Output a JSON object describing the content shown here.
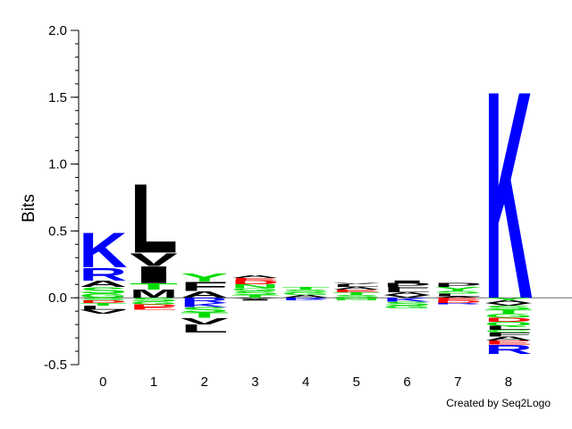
{
  "chart_data": {
    "type": "sequence-logo",
    "ylabel": "Bits",
    "ylim": [
      -0.5,
      2.0
    ],
    "yticks": [
      "-0.5",
      "0.0",
      "0.5",
      "1.0",
      "1.5",
      "2.0"
    ],
    "categories": [
      "0",
      "1",
      "2",
      "3",
      "4",
      "5",
      "6",
      "7",
      "8"
    ],
    "colors": {
      "K": "#0000ff",
      "R": "#0000ff",
      "H": "#0000ff",
      "S": "#00dd00",
      "G": "#00dd00",
      "T": "#00dd00",
      "Y": "#00dd00",
      "C": "#00dd00",
      "Q": "#00dd00",
      "N": "#00dd00",
      "D": "#ff0000",
      "E": "#ff0000",
      "A": "#000000",
      "V": "#000000",
      "L": "#000000",
      "I": "#000000",
      "M": "#000000",
      "F": "#000000",
      "P": "#000000",
      "W": "#000000"
    },
    "positions": [
      {
        "pos": "0",
        "above": [
          [
            "G",
            0.03
          ],
          [
            "S",
            0.05
          ],
          [
            "A",
            0.05
          ],
          [
            "R",
            0.1
          ],
          [
            "K",
            0.27
          ]
        ],
        "below": [
          [
            "S",
            0.02
          ],
          [
            "D",
            0.02
          ],
          [
            "T",
            0.02
          ],
          [
            "L",
            0.03
          ],
          [
            "V",
            0.03
          ]
        ]
      },
      {
        "pos": "1",
        "above": [
          [
            "M",
            0.06
          ],
          [
            "T",
            0.05
          ],
          [
            "I",
            0.13
          ],
          [
            "V",
            0.1
          ],
          [
            "L",
            0.53
          ]
        ],
        "below": [
          [
            "S",
            0.03
          ],
          [
            "G",
            0.02
          ],
          [
            "D",
            0.02
          ],
          [
            "E",
            0.02
          ]
        ]
      },
      {
        "pos": "2",
        "above": [
          [
            "A",
            0.05
          ],
          [
            "F",
            0.07
          ],
          [
            "Y",
            0.06
          ]
        ],
        "below": [
          [
            "R",
            0.04
          ],
          [
            "K",
            0.03
          ],
          [
            "S",
            0.04
          ],
          [
            "T",
            0.04
          ],
          [
            "V",
            0.05
          ],
          [
            "L",
            0.06
          ]
        ]
      },
      {
        "pos": "3",
        "above": [
          [
            "T",
            0.02
          ],
          [
            "S",
            0.03
          ],
          [
            "G",
            0.02
          ],
          [
            "N",
            0.03
          ],
          [
            "D",
            0.03
          ],
          [
            "E",
            0.02
          ],
          [
            "A",
            0.02
          ]
        ],
        "below": [
          [
            "V",
            0.01
          ],
          [
            "I",
            0.01
          ]
        ]
      },
      {
        "pos": "4",
        "above": [
          [
            "A",
            0.02
          ],
          [
            "G",
            0.02
          ],
          [
            "S",
            0.02
          ],
          [
            "T",
            0.02
          ]
        ],
        "below": [
          [
            "R",
            0.01
          ],
          [
            "K",
            0.01
          ]
        ]
      },
      {
        "pos": "5",
        "above": [
          [
            "S",
            0.02
          ],
          [
            "T",
            0.02
          ],
          [
            "E",
            0.02
          ],
          [
            "A",
            0.02
          ],
          [
            "L",
            0.02
          ],
          [
            "V",
            0.01
          ]
        ],
        "below": [
          [
            "G",
            0.01
          ],
          [
            "N",
            0.01
          ]
        ]
      },
      {
        "pos": "6",
        "above": [
          [
            "V",
            0.02
          ],
          [
            "A",
            0.02
          ],
          [
            "L",
            0.02
          ],
          [
            "F",
            0.02
          ],
          [
            "P",
            0.03
          ],
          [
            "I",
            0.02
          ]
        ],
        "below": [
          [
            "K",
            0.03
          ],
          [
            "S",
            0.03
          ],
          [
            "G",
            0.02
          ]
        ]
      },
      {
        "pos": "7",
        "above": [
          [
            "A",
            0.01
          ],
          [
            "L",
            0.02
          ],
          [
            "S",
            0.02
          ],
          [
            "Y",
            0.03
          ],
          [
            "P",
            0.03
          ]
        ],
        "below": [
          [
            "E",
            0.02
          ],
          [
            "D",
            0.02
          ],
          [
            "R",
            0.01
          ]
        ]
      },
      {
        "pos": "8",
        "above": [
          [
            "K",
            1.6
          ]
        ],
        "below": [
          [
            "Y",
            0.02
          ],
          [
            "A",
            0.02
          ],
          [
            "V",
            0.02
          ],
          [
            "S",
            0.03
          ],
          [
            "T",
            0.03
          ],
          [
            "G",
            0.03
          ],
          [
            "D",
            0.03
          ],
          [
            "Q",
            0.03
          ],
          [
            "L",
            0.03
          ],
          [
            "C",
            0.02
          ],
          [
            "F",
            0.03
          ],
          [
            "A",
            0.03
          ],
          [
            "E",
            0.03
          ],
          [
            "R",
            0.07
          ]
        ]
      }
    ]
  },
  "credit": "Created by Seq2Logo"
}
